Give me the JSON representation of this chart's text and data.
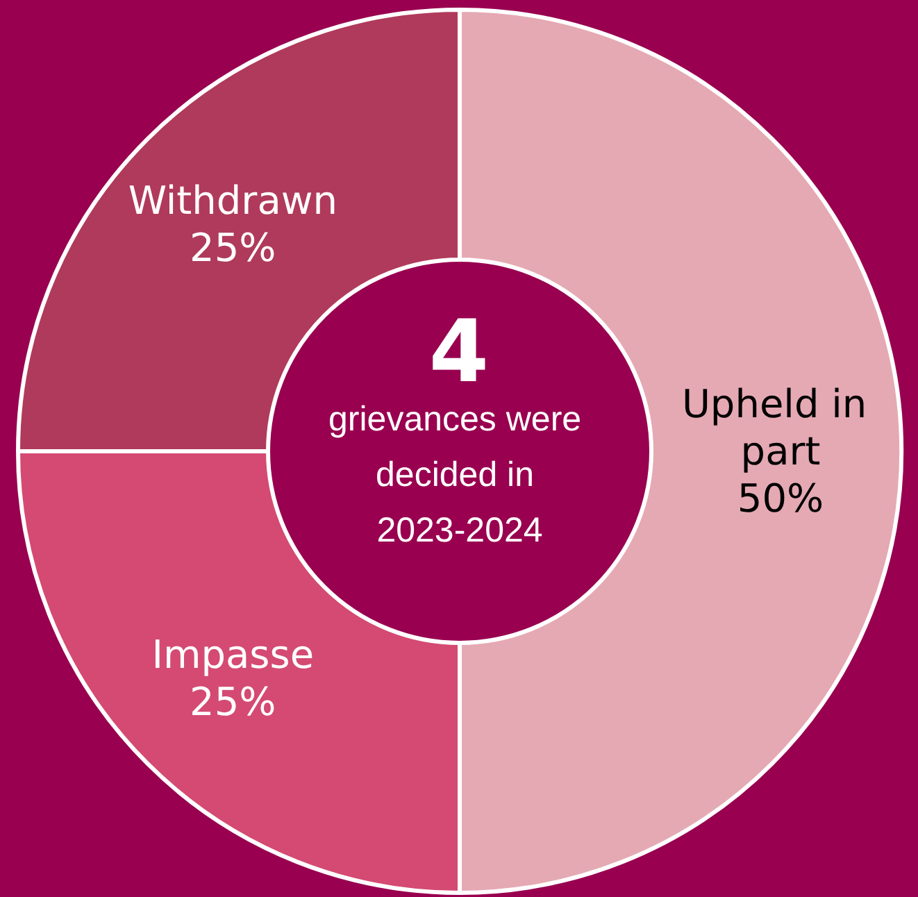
{
  "chart_data": {
    "type": "donut",
    "categories": [
      "Upheld in part",
      "Impasse",
      "Withdrawn"
    ],
    "values": [
      50,
      25,
      25
    ],
    "value_labels": [
      "50%",
      "25%",
      "25%"
    ],
    "colors": [
      "#e5a9b4",
      "#d44a72",
      "#b03a5b"
    ],
    "data_labels": true,
    "legend": false,
    "annotations": [
      "4",
      "grievances were decided in 2023-2024"
    ]
  }
}
